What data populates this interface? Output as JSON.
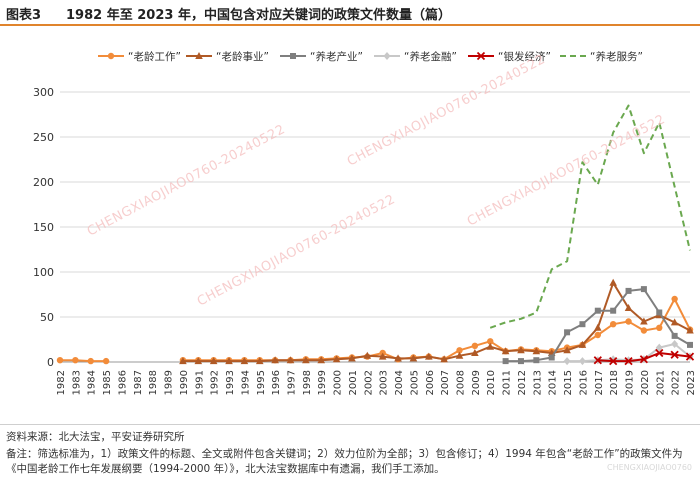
{
  "header": {
    "figure_label": "图表3",
    "title": "1982 年至 2023 年，中国包含对应关键词的政策文件数量（篇）"
  },
  "watermarks": [
    "CHENGXIAOJIAO0760-20240522",
    "CHENGXIAOJIAO0760-20240522",
    "CHENGXIAOJIAO0760-20240522",
    "CHENGXIAOJIAO0760-20240522"
  ],
  "corner_watermark": "CHENGXIAOJIAO0760",
  "chart_data": {
    "type": "line",
    "x": [
      1982,
      1983,
      1984,
      1985,
      1986,
      1987,
      1988,
      1989,
      1990,
      1991,
      1992,
      1993,
      1994,
      1995,
      1996,
      1997,
      1998,
      1999,
      2000,
      2001,
      2002,
      2003,
      2004,
      2005,
      2006,
      2007,
      2008,
      2009,
      2010,
      2011,
      2012,
      2013,
      2014,
      2015,
      2016,
      2017,
      2018,
      2019,
      2020,
      2021,
      2022,
      2023
    ],
    "ylim": [
      0,
      300
    ],
    "yticks": [
      0,
      50,
      100,
      150,
      200,
      250,
      300
    ],
    "grid": true,
    "legend_position": "top",
    "series": [
      {
        "name": "“老龄工作”",
        "color": "#f28c3a",
        "marker": "circle",
        "dash": "solid",
        "values": [
          2,
          2,
          1,
          1,
          null,
          null,
          null,
          null,
          2,
          2,
          2,
          2,
          2,
          2,
          2,
          2,
          3,
          3,
          4,
          5,
          6,
          10,
          3,
          5,
          6,
          3,
          13,
          18,
          23,
          12,
          14,
          13,
          12,
          16,
          19,
          30,
          42,
          45,
          35,
          38,
          70,
          36
        ]
      },
      {
        "name": "“老龄事业”",
        "color": "#b05a26",
        "marker": "triangle",
        "dash": "solid",
        "values": [
          null,
          null,
          null,
          null,
          null,
          null,
          null,
          null,
          1,
          1,
          1,
          1,
          1,
          1,
          2,
          2,
          2,
          2,
          3,
          4,
          7,
          6,
          4,
          4,
          6,
          3,
          7,
          10,
          17,
          12,
          13,
          12,
          10,
          13,
          19,
          38,
          88,
          60,
          45,
          52,
          44,
          35
        ]
      },
      {
        "name": "“养老产业”",
        "color": "#7f7f7f",
        "marker": "square",
        "dash": "solid",
        "values": [
          null,
          null,
          null,
          null,
          null,
          null,
          null,
          null,
          null,
          null,
          null,
          null,
          null,
          null,
          null,
          null,
          null,
          null,
          null,
          null,
          null,
          null,
          null,
          null,
          null,
          null,
          null,
          null,
          null,
          1,
          1,
          2,
          5,
          33,
          42,
          57,
          57,
          79,
          81,
          55,
          29,
          19
        ]
      },
      {
        "name": "“养老金融”",
        "color": "#c8c8c8",
        "marker": "diamond",
        "dash": "solid",
        "values": [
          null,
          null,
          null,
          null,
          null,
          null,
          null,
          null,
          null,
          null,
          null,
          null,
          null,
          null,
          null,
          null,
          null,
          null,
          null,
          null,
          null,
          null,
          null,
          null,
          null,
          null,
          null,
          null,
          null,
          null,
          null,
          null,
          null,
          1,
          1,
          2,
          3,
          2,
          3,
          16,
          20,
          6
        ]
      },
      {
        "name": "“银发经济”",
        "color": "#c00000",
        "marker": "x",
        "dash": "solid",
        "values": [
          null,
          null,
          null,
          null,
          null,
          null,
          null,
          null,
          null,
          null,
          null,
          null,
          null,
          null,
          null,
          null,
          null,
          null,
          null,
          null,
          null,
          null,
          null,
          null,
          null,
          null,
          null,
          null,
          null,
          null,
          null,
          null,
          null,
          null,
          null,
          2,
          1,
          1,
          3,
          10,
          8,
          6
        ]
      },
      {
        "name": "“养老服务”",
        "color": "#6aa84f",
        "marker": "none",
        "dash": "dashed",
        "values": [
          null,
          null,
          null,
          null,
          null,
          null,
          null,
          null,
          null,
          null,
          null,
          null,
          null,
          null,
          null,
          null,
          null,
          null,
          null,
          null,
          null,
          null,
          null,
          null,
          null,
          null,
          null,
          null,
          38,
          44,
          48,
          55,
          103,
          112,
          222,
          197,
          255,
          285,
          232,
          266,
          195,
          124
        ]
      }
    ]
  },
  "footer": {
    "source": "资料来源：北大法宝，平安证券研究所",
    "note": "备注：筛选标准为，1）政策文件的标题、全文或附件包含关键词；2）效力位阶为全部；3）包含修订；4）1994 年包含“老龄工作”的政策文件为《中国老龄工作七年发展纲要（1994-2000 年）》，北大法宝数据库中有遗漏，我们手工添加。"
  }
}
